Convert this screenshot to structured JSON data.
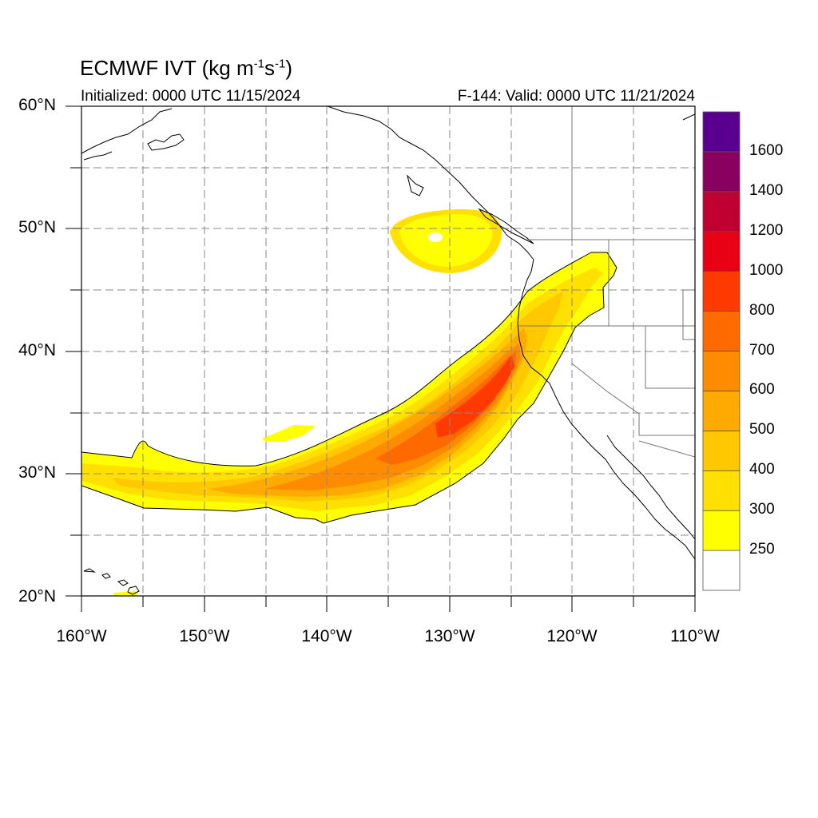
{
  "header": {
    "title_main": "ECMWF IVT (kg m",
    "title_sup1": "-1",
    "title_mid": "s",
    "title_sup2": "-1",
    "title_end": ")",
    "initialized": "Initialized: 0000 UTC 11/15/2024",
    "valid": "F-144: Valid: 0000 UTC 11/21/2024"
  },
  "axes": {
    "lat_labels": [
      "60°N",
      "50°N",
      "40°N",
      "30°N",
      "20°N"
    ],
    "lon_labels": [
      "160°W",
      "150°W",
      "140°W",
      "130°W",
      "120°W",
      "110°W"
    ],
    "lat_range": [
      20,
      60
    ],
    "lon_range": [
      -160,
      -110
    ],
    "grid": "dashed, every 5 degrees"
  },
  "colorbar": {
    "levels": [
      "250",
      "300",
      "400",
      "500",
      "600",
      "700",
      "800",
      "1000",
      "1200",
      "1400",
      "1600"
    ],
    "colors": [
      "#ffffff",
      "#ffff00",
      "#ffe000",
      "#ffc800",
      "#ffaa00",
      "#ff8c00",
      "#ff6a00",
      "#ff3a00",
      "#e80014",
      "#c00030",
      "#8a0060",
      "#5a0090"
    ]
  },
  "map_features": {
    "field": "integrated vapor transport",
    "atmospheric_river": "band from 160°W 30°N curving northeast to Pacific Northwest coast, peak >800 near 40°N 125°W",
    "secondary_feature": "closed 250-300 blob near 50°N 131°W"
  }
}
